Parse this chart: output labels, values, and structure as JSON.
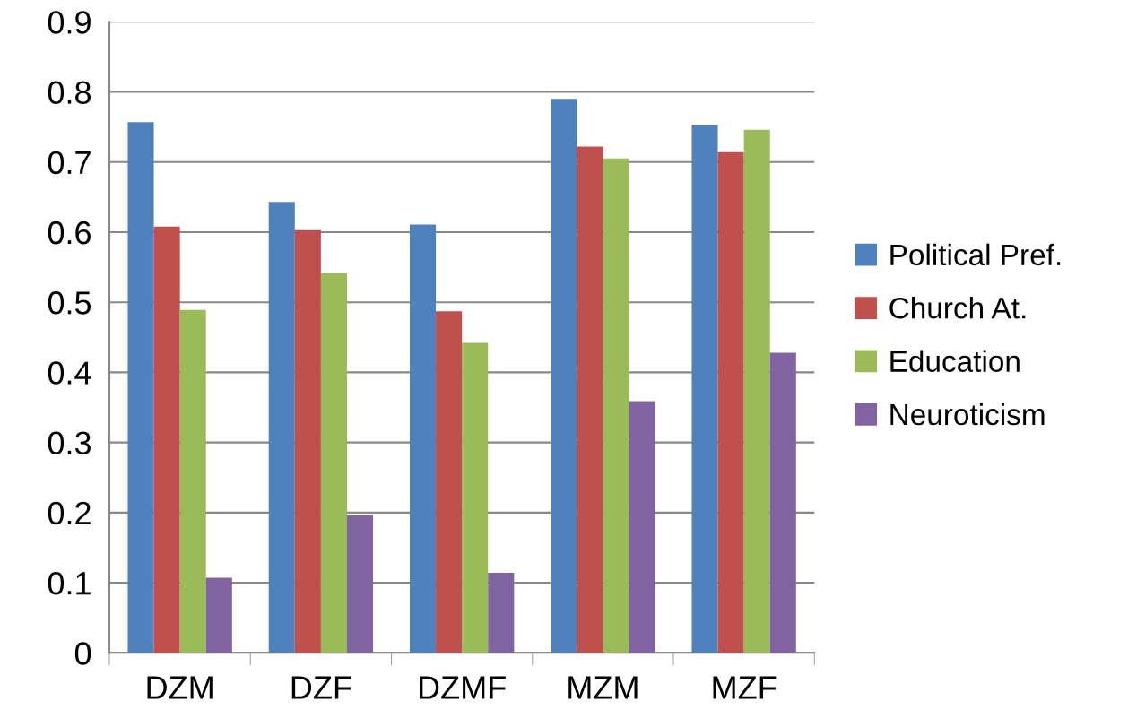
{
  "chart_data": {
    "type": "bar",
    "categories": [
      "DZM",
      "DZF",
      "DZMF",
      "MZM",
      "MZF"
    ],
    "series": [
      {
        "name": "Political Pref.",
        "color": "#4f81bd",
        "values": [
          0.757,
          0.643,
          0.611,
          0.79,
          0.753
        ]
      },
      {
        "name": "Church At.",
        "color": "#c0504d",
        "values": [
          0.608,
          0.603,
          0.487,
          0.722,
          0.714
        ]
      },
      {
        "name": "Education",
        "color": "#9bbb59",
        "values": [
          0.489,
          0.542,
          0.442,
          0.705,
          0.746
        ]
      },
      {
        "name": "Neuroticism",
        "color": "#8064a2",
        "values": [
          0.107,
          0.196,
          0.114,
          0.359,
          0.428
        ]
      }
    ],
    "ylim": [
      0,
      0.9
    ],
    "yticks": [
      {
        "value": 0,
        "label": "0"
      },
      0.1,
      0.2,
      0.3,
      0.4,
      0.5,
      0.6,
      0.7,
      0.8,
      0.9
    ],
    "grid": "y",
    "legend": "right"
  }
}
